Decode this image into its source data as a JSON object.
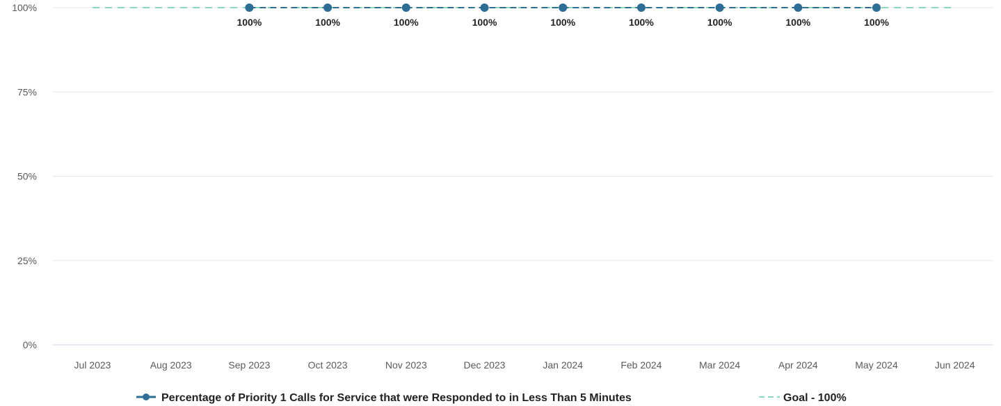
{
  "chart_data": {
    "type": "line",
    "title": "",
    "xlabel": "",
    "ylabel": "",
    "x": [
      "Jul 2023",
      "Aug 2023",
      "Sep 2023",
      "Oct 2023",
      "Nov 2023",
      "Dec 2023",
      "Jan 2024",
      "Feb 2024",
      "Mar 2024",
      "Apr 2024",
      "May 2024",
      "Jun 2024"
    ],
    "ylim": [
      0,
      100
    ],
    "yticks": [
      {
        "value": 0,
        "label": "0%"
      },
      {
        "value": 25,
        "label": "25%"
      },
      {
        "value": 50,
        "label": "50%"
      },
      {
        "value": 75,
        "label": "75%"
      },
      {
        "value": 100,
        "label": "100%"
      }
    ],
    "grid": true,
    "legend_position": "bottom",
    "series": [
      {
        "name": "Percentage of Priority 1 Calls for Service that were Responded to in Less Than 5 Minutes",
        "color": "#2e6e96",
        "marker": "circle",
        "values": [
          null,
          null,
          100,
          100,
          100,
          100,
          100,
          100,
          100,
          100,
          100,
          null
        ],
        "data_labels": [
          null,
          null,
          "100%",
          "100%",
          "100%",
          "100%",
          "100%",
          "100%",
          "100%",
          "100%",
          "100%",
          null
        ]
      },
      {
        "name": "Goal - 100%",
        "color": "#8fd6b8",
        "style": "dashed",
        "values": [
          100,
          100,
          100,
          100,
          100,
          100,
          100,
          100,
          100,
          100,
          100,
          100
        ]
      }
    ]
  }
}
